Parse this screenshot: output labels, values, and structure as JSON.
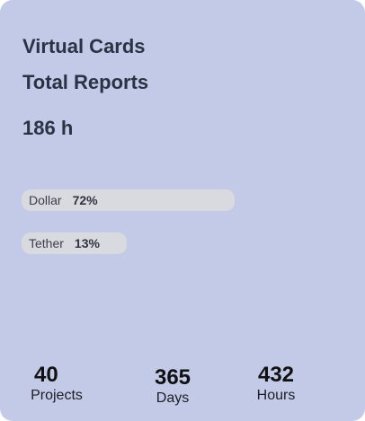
{
  "card": {
    "title": "Virtual Cards",
    "subtitle": "Total Reports",
    "total": "186 h"
  },
  "bars": [
    {
      "name": "Dollar",
      "percent_label": "72%",
      "value": 72
    },
    {
      "name": "Tether",
      "percent_label": "13%",
      "value": 13
    }
  ],
  "stats": [
    {
      "value": "40",
      "label": "Projects"
    },
    {
      "value": "365",
      "label": "Days"
    },
    {
      "value": "432",
      "label": "Hours"
    }
  ],
  "colors": {
    "card_background": "#c3cae8",
    "bar_fill": "#d9dadf",
    "heading_text": "#2a3344"
  }
}
